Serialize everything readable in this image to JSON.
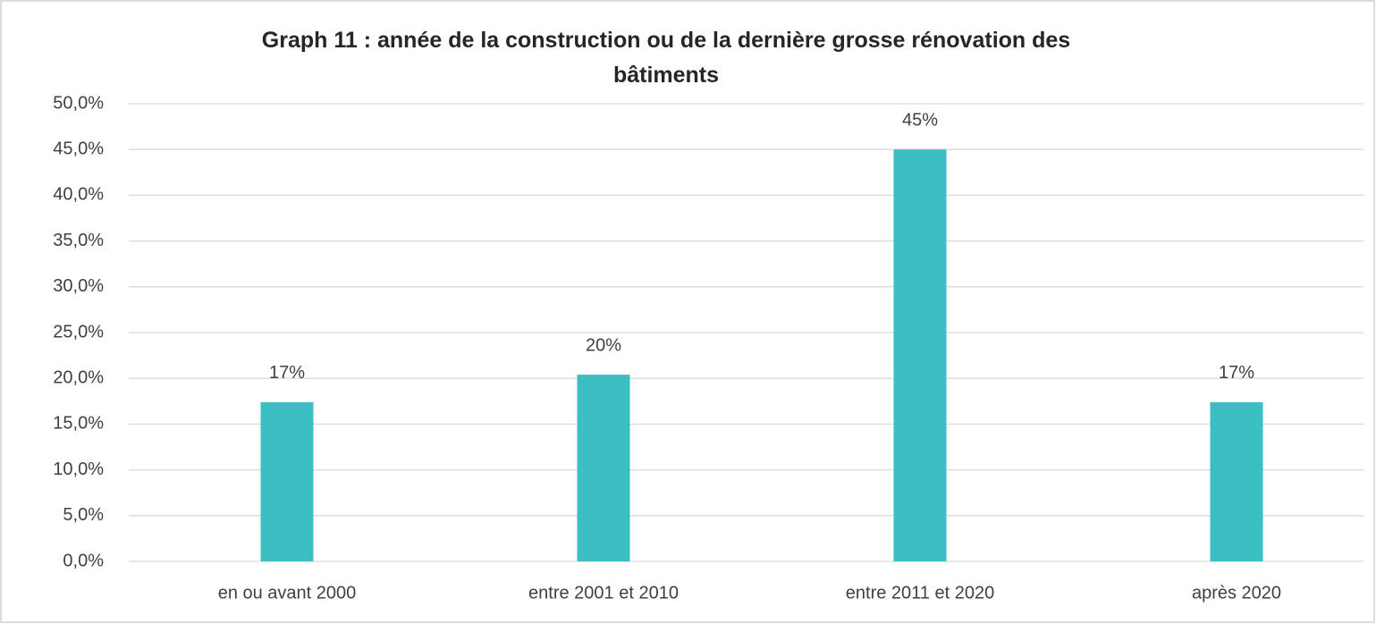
{
  "chart_data": {
    "type": "bar",
    "title": "Graph 11 : année de la construction ou de la dernière grosse rénovation des bâtiments",
    "categories": [
      "en ou avant 2000",
      "entre 2001 et 2010",
      "entre 2011 et 2020",
      "après 2020"
    ],
    "values": [
      17.4,
      20.4,
      45.0,
      17.4
    ],
    "value_labels": [
      "17%",
      "20%",
      "45%",
      "17%"
    ],
    "color": "#3bbfc2",
    "ylim": [
      0,
      50
    ],
    "yticks": [
      {
        "value": 0,
        "label": "0,0%"
      },
      {
        "value": 5,
        "label": "5,0%"
      },
      {
        "value": 10,
        "label": "10,0%"
      },
      {
        "value": 15,
        "label": "15,0%"
      },
      {
        "value": 20,
        "label": "20,0%"
      },
      {
        "value": 25,
        "label": "25,0%"
      },
      {
        "value": 30,
        "label": "30,0%"
      },
      {
        "value": 35,
        "label": "35,0%"
      },
      {
        "value": 40,
        "label": "40,0%"
      },
      {
        "value": 45,
        "label": "45,0%"
      },
      {
        "value": 50,
        "label": "50,0%"
      }
    ],
    "grid": true
  }
}
